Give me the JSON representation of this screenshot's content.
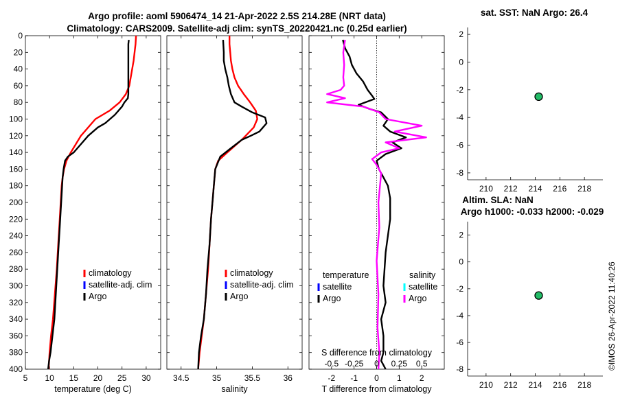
{
  "title_line1": "Argo profile: aoml 5906474_14 21-Apr-2022 2.5S 214.28E (NRT data)",
  "title_line2": "Climatology: CARS2009. Satellite-adj clim: synTS_20220421.nc (0.25d earlier)",
  "copyright": "©IMOS 26-Apr-2022 11:40:26",
  "colors": {
    "climatology": "#ff0000",
    "satellite": "#0000ff",
    "argo": "#000000",
    "sal_satellite": "#00ffff",
    "sal_argo": "#ff00ff",
    "marker_fill": "#22bb66"
  },
  "chart_data": [
    {
      "type": "line",
      "id": "temperature",
      "xlabel": "temperature (deg C)",
      "ylabel": "",
      "xlim": [
        5,
        33
      ],
      "ylim": [
        0,
        400
      ],
      "y_reversed": true,
      "xticks": [
        5,
        10,
        15,
        20,
        25,
        30
      ],
      "yticks": [
        0,
        20,
        40,
        60,
        80,
        100,
        120,
        140,
        160,
        180,
        200,
        220,
        240,
        260,
        280,
        300,
        320,
        340,
        360,
        380,
        400
      ],
      "legend": [
        "climatology",
        "satellite-adj. clim",
        "Argo"
      ],
      "series": [
        {
          "name": "climatology",
          "color": "red",
          "x": [
            27.9,
            27.8,
            27.6,
            27.4,
            27.1,
            26.8,
            26.5,
            25.8,
            24.5,
            22.4,
            19.5,
            16.5,
            14.4,
            13.5,
            13.0,
            12.7,
            12.5,
            12.3,
            12.1,
            11.8,
            11.5,
            11.1,
            10.7,
            10.3,
            10.0,
            9.8
          ],
          "y": [
            0,
            10,
            20,
            30,
            40,
            50,
            60,
            70,
            80,
            90,
            100,
            120,
            140,
            150,
            160,
            170,
            180,
            200,
            220,
            250,
            280,
            310,
            340,
            360,
            380,
            400
          ]
        },
        {
          "name": "Argo",
          "color": "black",
          "x": [
            26.4,
            26.3,
            26.3,
            26.3,
            26.3,
            26.3,
            26.3,
            26.3,
            26.2,
            25.5,
            25.0,
            23.5,
            21.5,
            20.0,
            18.0,
            16.5,
            15.0,
            13.8,
            13.2,
            12.9,
            12.7,
            12.6,
            12.5,
            12.4,
            12.2,
            11.9,
            11.6,
            11.3,
            11.0,
            10.6,
            10.2,
            9.9,
            9.7
          ],
          "y": [
            5,
            10,
            20,
            30,
            40,
            50,
            60,
            70,
            75,
            80,
            85,
            95,
            105,
            110,
            120,
            130,
            140,
            145,
            150,
            160,
            170,
            180,
            190,
            200,
            220,
            250,
            280,
            310,
            340,
            360,
            380,
            390,
            400
          ]
        }
      ]
    },
    {
      "type": "line",
      "id": "salinity",
      "xlabel": "salinity",
      "xlim": [
        34.3,
        36.2
      ],
      "ylim": [
        0,
        400
      ],
      "y_reversed": true,
      "xticks": [
        34.5,
        35,
        35.5,
        36
      ],
      "legend": [
        "climatology",
        "satellite-adj. clim",
        "Argo"
      ],
      "series": [
        {
          "name": "climatology",
          "color": "red",
          "x": [
            35.18,
            35.18,
            35.19,
            35.2,
            35.22,
            35.25,
            35.3,
            35.38,
            35.47,
            35.55,
            35.57,
            35.52,
            35.35,
            35.15,
            35.02,
            34.98,
            34.96,
            34.94,
            34.92,
            34.9,
            34.88,
            34.85,
            34.82,
            34.79,
            34.76,
            34.74
          ],
          "y": [
            0,
            10,
            20,
            30,
            40,
            50,
            60,
            70,
            80,
            90,
            100,
            110,
            125,
            140,
            150,
            160,
            180,
            200,
            220,
            250,
            280,
            310,
            340,
            360,
            380,
            400
          ]
        },
        {
          "name": "Argo",
          "color": "black",
          "x": [
            35.09,
            35.1,
            35.1,
            35.12,
            35.15,
            35.17,
            35.2,
            35.25,
            35.35,
            35.5,
            35.68,
            35.7,
            35.6,
            35.48,
            35.35,
            35.2,
            35.05,
            34.98,
            34.96,
            34.94,
            34.92,
            34.9,
            34.87,
            34.85,
            34.82,
            34.78,
            34.75,
            34.74
          ],
          "y": [
            5,
            20,
            30,
            40,
            50,
            60,
            70,
            80,
            85,
            92,
            98,
            105,
            115,
            120,
            125,
            135,
            145,
            160,
            180,
            200,
            220,
            250,
            280,
            310,
            340,
            360,
            380,
            400
          ]
        }
      ]
    },
    {
      "type": "line",
      "id": "differences",
      "xlabel": "T difference from climatology",
      "x2label": "S difference from climatology",
      "xlim": [
        -3,
        3
      ],
      "ylim": [
        0,
        400
      ],
      "y_reversed": true,
      "xticks": [
        -2,
        -1,
        0,
        1,
        2
      ],
      "x2lim": [
        -0.75,
        0.75
      ],
      "x2ticks": [
        "-0.5",
        "-0.25",
        "0",
        "0.25",
        "0.5"
      ],
      "legend_temperature_title": "temperature",
      "legend_salinity_title": "salinity",
      "legend_temperature": [
        "satellite",
        "Argo"
      ],
      "legend_salinity": [
        "satellite",
        "Argo"
      ],
      "series": [
        {
          "name": "Argo T diff",
          "color": "black",
          "x": [
            -1.5,
            -1.4,
            -1.2,
            -1.1,
            -0.9,
            -0.6,
            -0.4,
            -0.2,
            -0.1,
            -0.8,
            -0.3,
            0.2,
            0.5,
            0.3,
            0.6,
            0.9,
            1.3,
            0.7,
            1.1,
            0.4,
            0.0,
            0.1,
            0.3,
            0.5,
            0.6,
            0.6,
            0.4,
            0.3,
            0.4,
            0.2,
            0.3,
            0.3,
            0.2,
            0.3,
            0.4
          ],
          "y": [
            5,
            15,
            25,
            35,
            45,
            55,
            65,
            72,
            76,
            83,
            88,
            92,
            100,
            108,
            115,
            118,
            122,
            128,
            135,
            142,
            150,
            160,
            170,
            180,
            195,
            220,
            260,
            300,
            320,
            340,
            360,
            380,
            390,
            395,
            400
          ]
        },
        {
          "name": "Argo S diff",
          "color": "magenta",
          "x": [
            -0.35,
            -0.37,
            -0.36,
            -0.37,
            -0.36,
            -0.4,
            -0.55,
            -0.35,
            -0.55,
            -0.15,
            0.03,
            0.1,
            0.5,
            0.2,
            0.55,
            0.1,
            0.25,
            0.05,
            -0.05,
            0.0,
            0.05,
            0.02,
            0.03,
            0.0,
            0.02,
            0.01,
            0.03,
            0.02
          ],
          "y": [
            5,
            20,
            35,
            50,
            60,
            65,
            70,
            75,
            80,
            85,
            92,
            100,
            108,
            115,
            122,
            128,
            135,
            140,
            148,
            155,
            165,
            200,
            230,
            270,
            310,
            350,
            380,
            400
          ]
        }
      ]
    },
    {
      "type": "scatter",
      "id": "sst_map",
      "title": "sat. SST: NaN Argo: 26.4",
      "xlim": [
        208.5,
        219.5
      ],
      "ylim": [
        -8.5,
        2.5
      ],
      "xticks": [
        210,
        212,
        214,
        216,
        218
      ],
      "yticks": [
        2,
        0,
        -2,
        -4,
        -6,
        -8
      ],
      "points": [
        {
          "x": 214.28,
          "y": -2.5
        }
      ]
    },
    {
      "type": "scatter",
      "id": "sla_map",
      "title": "Altim. SLA: NaN",
      "subtitle": "Argo h1000: -0.033 h2000: -0.029",
      "xlim": [
        208.5,
        219.5
      ],
      "ylim": [
        -8.5,
        3
      ],
      "xticks": [
        210,
        212,
        214,
        216,
        218
      ],
      "yticks": [
        2,
        0,
        -2,
        -4,
        -6,
        -8
      ],
      "points": [
        {
          "x": 214.28,
          "y": -2.5
        }
      ]
    }
  ]
}
